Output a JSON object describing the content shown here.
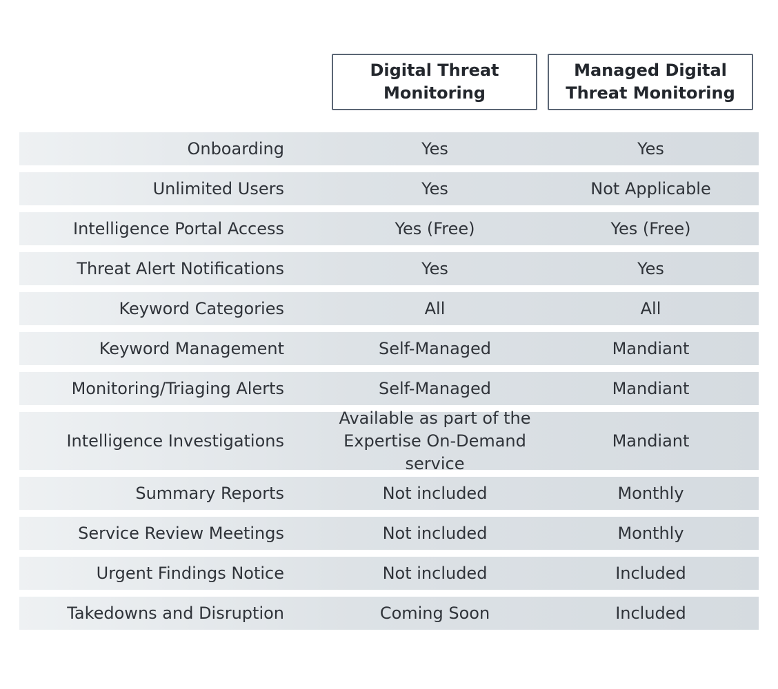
{
  "headers": {
    "col_a": "Digital Threat Monitoring",
    "col_b": "Managed Digital Threat Monitoring"
  },
  "rows": [
    {
      "label": "Onboarding",
      "a": "Yes",
      "b": "Yes"
    },
    {
      "label": "Unlimited Users",
      "a": "Yes",
      "b": "Not Applicable"
    },
    {
      "label": "Intelligence Portal Access",
      "a": "Yes (Free)",
      "b": "Yes (Free)"
    },
    {
      "label": "Threat Alert Notifications",
      "a": "Yes",
      "b": "Yes"
    },
    {
      "label": "Keyword Categories",
      "a": "All",
      "b": "All"
    },
    {
      "label": "Keyword Management",
      "a": "Self-Managed",
      "b": "Mandiant"
    },
    {
      "label": "Monitoring/Triaging Alerts",
      "a": "Self-Managed",
      "b": "Mandiant"
    },
    {
      "label": "Intelligence Investigations",
      "a": "Available as part of the Expertise On-Demand service",
      "b": "Mandiant"
    },
    {
      "label": "Summary Reports",
      "a": "Not included",
      "b": "Monthly"
    },
    {
      "label": "Service Review Meetings",
      "a": "Not included",
      "b": "Monthly"
    },
    {
      "label": "Urgent Findings Notice",
      "a": "Not included",
      "b": "Included"
    },
    {
      "label": "Takedowns and Disruption",
      "a": "Coming Soon",
      "b": "Included"
    }
  ]
}
